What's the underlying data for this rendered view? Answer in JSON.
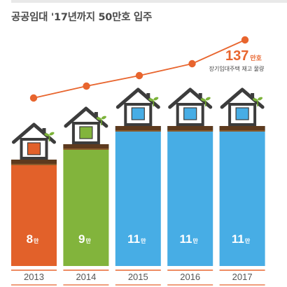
{
  "chart_data": {
    "type": "bar",
    "title": "공공임대 '17년까지 50만호 입주",
    "categories": [
      "2013",
      "2014",
      "2015",
      "2016",
      "2017"
    ],
    "values": [
      8,
      9,
      11,
      11,
      11
    ],
    "value_unit": "만",
    "bar_colors": [
      "#e2612a",
      "#82b43c",
      "#47ade5",
      "#47ade5",
      "#47ade5"
    ],
    "trend_line": {
      "color": "#e8652e",
      "final_value_label": "137",
      "final_value_unit": "만호",
      "final_value_caption": "장기임대주택 재고 물량"
    },
    "icons": [
      "house-icon",
      "sprout-icon"
    ]
  }
}
